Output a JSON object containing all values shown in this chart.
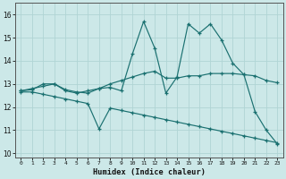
{
  "xlabel": "Humidex (Indice chaleur)",
  "bg_color": "#cce8e8",
  "line_color": "#1a7070",
  "grid_color": "#b0d4d4",
  "xlim": [
    -0.5,
    23.5
  ],
  "ylim": [
    9.8,
    16.5
  ],
  "xticks": [
    0,
    1,
    2,
    3,
    4,
    5,
    6,
    7,
    8,
    9,
    10,
    11,
    12,
    13,
    14,
    15,
    16,
    17,
    18,
    19,
    20,
    21,
    22,
    23
  ],
  "yticks": [
    10,
    11,
    12,
    13,
    14,
    15,
    16
  ],
  "series1_x": [
    0,
    1,
    2,
    3,
    4,
    5,
    6,
    7,
    8,
    9,
    10,
    11,
    12,
    13,
    14,
    15,
    16,
    17,
    18,
    19,
    20,
    21,
    22,
    23
  ],
  "series1_y": [
    12.7,
    12.8,
    12.9,
    13.0,
    12.7,
    12.6,
    12.7,
    12.8,
    12.85,
    12.7,
    14.3,
    15.7,
    14.55,
    12.6,
    13.3,
    15.6,
    15.2,
    15.6,
    14.9,
    13.9,
    13.4,
    11.8,
    11.0,
    10.4
  ],
  "series2_x": [
    0,
    1,
    2,
    3,
    4,
    5,
    6,
    7,
    8,
    9,
    10,
    11,
    12,
    13,
    14,
    15,
    16,
    17,
    18,
    19,
    20,
    21,
    22,
    23
  ],
  "series2_y": [
    12.7,
    12.75,
    13.0,
    13.0,
    12.75,
    12.65,
    12.6,
    12.8,
    13.0,
    13.15,
    13.3,
    13.45,
    13.55,
    13.25,
    13.25,
    13.35,
    13.35,
    13.45,
    13.45,
    13.45,
    13.4,
    13.35,
    13.15,
    13.05
  ],
  "series3_x": [
    0,
    1,
    2,
    3,
    4,
    5,
    6,
    7,
    8,
    9,
    10,
    11,
    12,
    13,
    14,
    15,
    16,
    17,
    18,
    19,
    20,
    21,
    22,
    23
  ],
  "series3_y": [
    12.65,
    12.65,
    12.55,
    12.45,
    12.35,
    12.25,
    12.15,
    11.05,
    11.95,
    11.85,
    11.75,
    11.65,
    11.55,
    11.45,
    11.35,
    11.25,
    11.15,
    11.05,
    10.95,
    10.85,
    10.75,
    10.65,
    10.55,
    10.45
  ]
}
